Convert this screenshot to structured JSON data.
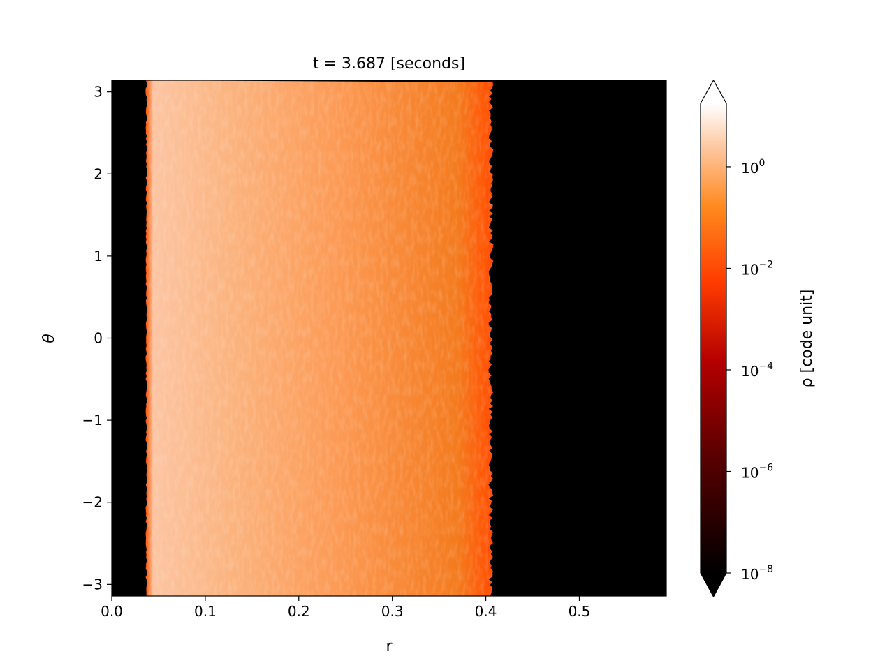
{
  "chart_data": {
    "type": "heatmap",
    "title": "t = 3.687 [seconds]",
    "xlabel": "r",
    "ylabel": "θ",
    "xlim": [
      0.0,
      0.593
    ],
    "ylim": [
      -3.1416,
      3.1416
    ],
    "x_ticks": [
      {
        "value": 0.0,
        "label": "0.0"
      },
      {
        "value": 0.1,
        "label": "0.1"
      },
      {
        "value": 0.2,
        "label": "0.2"
      },
      {
        "value": 0.3,
        "label": "0.3"
      },
      {
        "value": 0.4,
        "label": "0.4"
      },
      {
        "value": 0.5,
        "label": "0.5"
      }
    ],
    "y_ticks": [
      {
        "value": 3,
        "label": "3"
      },
      {
        "value": 2,
        "label": "2"
      },
      {
        "value": 1,
        "label": "1"
      },
      {
        "value": 0,
        "label": "0"
      },
      {
        "value": -1,
        "label": "−1"
      },
      {
        "value": -2,
        "label": "−2"
      },
      {
        "value": -3,
        "label": "−3"
      }
    ],
    "scale": "log",
    "colormap": "gist_heat",
    "colorbar": {
      "label": "ρ [code unit]",
      "log_range": [
        -8,
        1.25
      ],
      "extend": "both",
      "ticks": [
        {
          "exp": 0,
          "base": "10",
          "sup": "0"
        },
        {
          "exp": -2,
          "base": "10",
          "sup": "−2"
        },
        {
          "exp": -4,
          "base": "10",
          "sup": "−4"
        },
        {
          "exp": -6,
          "base": "10",
          "sup": "−6"
        },
        {
          "exp": -8,
          "base": "10",
          "sup": "−8"
        }
      ]
    },
    "profile": {
      "r_inner": 0.037,
      "r_outer": 0.405,
      "log_density_floor": -8,
      "log_density_inner": 0.1,
      "log_density_outer": -0.6
    },
    "colors": {
      "floor": "#000000",
      "inner": "#fcc5a2",
      "mid": "#fc9a55",
      "outer": "#f47a1d",
      "edge": "#ff5a08"
    }
  }
}
